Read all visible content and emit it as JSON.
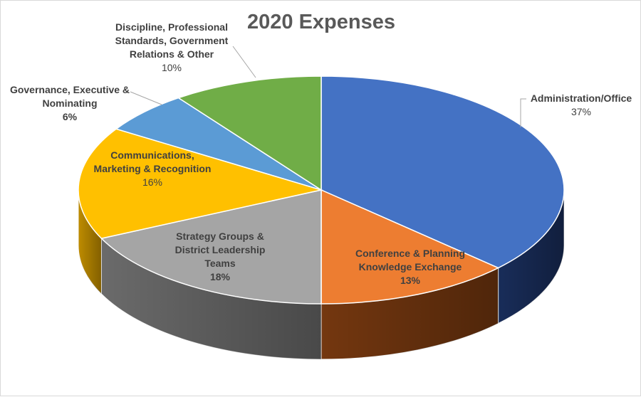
{
  "chart_data": {
    "type": "pie",
    "title": "2020 Expenses",
    "slices": [
      {
        "label": "Administration/Office",
        "value": 37,
        "pct_label": "37%",
        "color": "#4472C4",
        "side_color": "#1A2F5E"
      },
      {
        "label": "Conference & Planning Knowledge Exchange",
        "value": 13,
        "pct_label": "13%",
        "color": "#ED7D31",
        "side_color": "#7A3A10"
      },
      {
        "label": "Strategy Groups & District Leadership Teams",
        "value": 18,
        "pct_label": "18%",
        "color": "#A5A5A5",
        "side_color": "#707070"
      },
      {
        "label": "Communications, Marketing & Recognition",
        "value": 16,
        "pct_label": "16%",
        "color": "#FFC000",
        "side_color": "#C89300"
      },
      {
        "label": "Governance, Executive & Nominating",
        "value": 6,
        "pct_label": "6%",
        "color": "#5B9BD5",
        "side_color": "#2E5D8A"
      },
      {
        "label": "Discipline, Professional Standards, Government Relations & Other",
        "value": 10,
        "pct_label": "10%",
        "color": "#70AD47",
        "side_color": "#3D6526"
      }
    ],
    "legend": "none"
  },
  "labels": [
    {
      "lines": [
        "Administration/Office"
      ],
      "pct": "37%"
    },
    {
      "lines": [
        "Conference & Planning",
        "Knowledge Exchange"
      ],
      "pct": "13%"
    },
    {
      "lines": [
        "Strategy Groups &",
        "District Leadership",
        "Teams"
      ],
      "pct": "18%"
    },
    {
      "lines": [
        "Communications,",
        "Marketing & Recognition"
      ],
      "pct": "16%"
    },
    {
      "lines": [
        "Governance, Executive &",
        "Nominating"
      ],
      "pct": "6%"
    },
    {
      "lines": [
        "Discipline, Professional",
        "Standards, Government",
        "Relations & Other"
      ],
      "pct": "10%"
    }
  ]
}
